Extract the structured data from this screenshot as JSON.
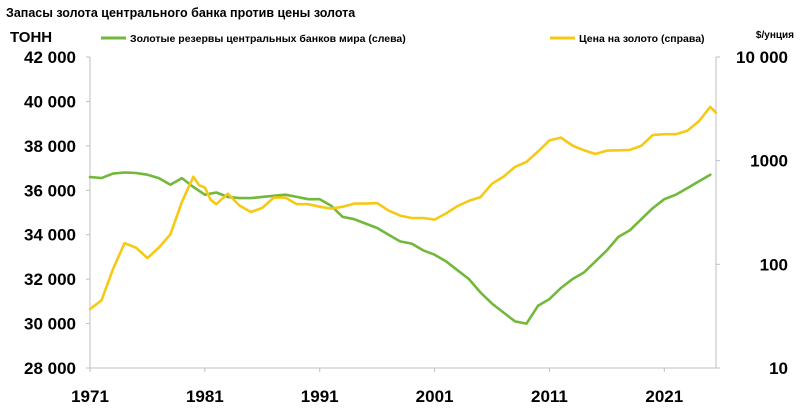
{
  "title": "Запасы золота центрального банка против цены золота",
  "chart_data": {
    "type": "line",
    "title": "Запасы золота центрального банка против цены золота",
    "left_axis": {
      "unit": "ТОНН",
      "min": 28000,
      "max": 42000,
      "step": 2000,
      "tick_labels": [
        "28 000",
        "30 000",
        "32 000",
        "34 000",
        "36 000",
        "38 000",
        "40 000",
        "42 000"
      ],
      "tick_values": [
        28000,
        30000,
        32000,
        34000,
        36000,
        38000,
        40000,
        42000
      ]
    },
    "right_axis": {
      "unit": "$/унция",
      "scale": "log",
      "min": 10,
      "max": 10000,
      "tick_labels": [
        "10",
        "100",
        "1000",
        "10 000"
      ],
      "tick_values": [
        10,
        100,
        1000,
        10000
      ]
    },
    "x_axis": {
      "min": 1971,
      "max": 2025.5,
      "tick_labels": [
        "1971",
        "1981",
        "1991",
        "2001",
        "2011",
        "2021"
      ],
      "tick_values": [
        1971,
        1981,
        1991,
        2001,
        2011,
        2021
      ]
    },
    "grid": false,
    "legend_position": "top",
    "series": [
      {
        "name": "Золотые резервы центральных банков мира (слева)",
        "axis": "left",
        "color": "#72b83a",
        "points": [
          [
            1971,
            36600
          ],
          [
            1972,
            36550
          ],
          [
            1973,
            36750
          ],
          [
            1974,
            36800
          ],
          [
            1975,
            36780
          ],
          [
            1976,
            36700
          ],
          [
            1977,
            36550
          ],
          [
            1978,
            36250
          ],
          [
            1979,
            36550
          ],
          [
            1980,
            36150
          ],
          [
            1981,
            35800
          ],
          [
            1982,
            35900
          ],
          [
            1983,
            35700
          ],
          [
            1984,
            35650
          ],
          [
            1985,
            35650
          ],
          [
            1986,
            35700
          ],
          [
            1987,
            35750
          ],
          [
            1988,
            35800
          ],
          [
            1989,
            35700
          ],
          [
            1990,
            35600
          ],
          [
            1991,
            35600
          ],
          [
            1992,
            35300
          ],
          [
            1993,
            34800
          ],
          [
            1994,
            34700
          ],
          [
            1995,
            34500
          ],
          [
            1996,
            34300
          ],
          [
            1997,
            34000
          ],
          [
            1998,
            33700
          ],
          [
            1999,
            33600
          ],
          [
            2000,
            33300
          ],
          [
            2001,
            33100
          ],
          [
            2002,
            32800
          ],
          [
            2003,
            32400
          ],
          [
            2004,
            32000
          ],
          [
            2005,
            31400
          ],
          [
            2006,
            30900
          ],
          [
            2007,
            30500
          ],
          [
            2008,
            30100
          ],
          [
            2009,
            30000
          ],
          [
            2010,
            30800
          ],
          [
            2011,
            31100
          ],
          [
            2012,
            31600
          ],
          [
            2013,
            32000
          ],
          [
            2014,
            32300
          ],
          [
            2015,
            32800
          ],
          [
            2016,
            33300
          ],
          [
            2017,
            33900
          ],
          [
            2018,
            34200
          ],
          [
            2019,
            34700
          ],
          [
            2020,
            35200
          ],
          [
            2021,
            35600
          ],
          [
            2022,
            35800
          ],
          [
            2023,
            36100
          ],
          [
            2024,
            36400
          ],
          [
            2025,
            36700
          ]
        ]
      },
      {
        "name": "Цена на золото (справа)",
        "axis": "right",
        "color": "#f6c914",
        "points": [
          [
            1971,
            37
          ],
          [
            1972,
            45
          ],
          [
            1973,
            90
          ],
          [
            1974,
            160
          ],
          [
            1975,
            145
          ],
          [
            1976,
            115
          ],
          [
            1977,
            145
          ],
          [
            1978,
            195
          ],
          [
            1979,
            400
          ],
          [
            1980,
            700
          ],
          [
            1980.5,
            580
          ],
          [
            1981,
            550
          ],
          [
            1981.5,
            420
          ],
          [
            1982,
            380
          ],
          [
            1983,
            480
          ],
          [
            1984,
            370
          ],
          [
            1985,
            320
          ],
          [
            1986,
            350
          ],
          [
            1987,
            440
          ],
          [
            1988,
            440
          ],
          [
            1989,
            380
          ],
          [
            1990,
            380
          ],
          [
            1991,
            360
          ],
          [
            1992,
            345
          ],
          [
            1993,
            360
          ],
          [
            1994,
            385
          ],
          [
            1995,
            385
          ],
          [
            1996,
            390
          ],
          [
            1997,
            330
          ],
          [
            1998,
            295
          ],
          [
            1999,
            280
          ],
          [
            2000,
            280
          ],
          [
            2001,
            270
          ],
          [
            2002,
            310
          ],
          [
            2003,
            365
          ],
          [
            2004,
            410
          ],
          [
            2005,
            445
          ],
          [
            2006,
            600
          ],
          [
            2007,
            700
          ],
          [
            2008,
            870
          ],
          [
            2009,
            975
          ],
          [
            2010,
            1225
          ],
          [
            2011,
            1570
          ],
          [
            2012,
            1670
          ],
          [
            2013,
            1400
          ],
          [
            2014,
            1260
          ],
          [
            2015,
            1160
          ],
          [
            2016,
            1250
          ],
          [
            2017,
            1260
          ],
          [
            2018,
            1270
          ],
          [
            2019,
            1390
          ],
          [
            2020,
            1770
          ],
          [
            2021,
            1800
          ],
          [
            2022,
            1800
          ],
          [
            2023,
            1940
          ],
          [
            2024,
            2400
          ],
          [
            2025,
            3300
          ],
          [
            2025.5,
            2900
          ]
        ]
      }
    ]
  }
}
